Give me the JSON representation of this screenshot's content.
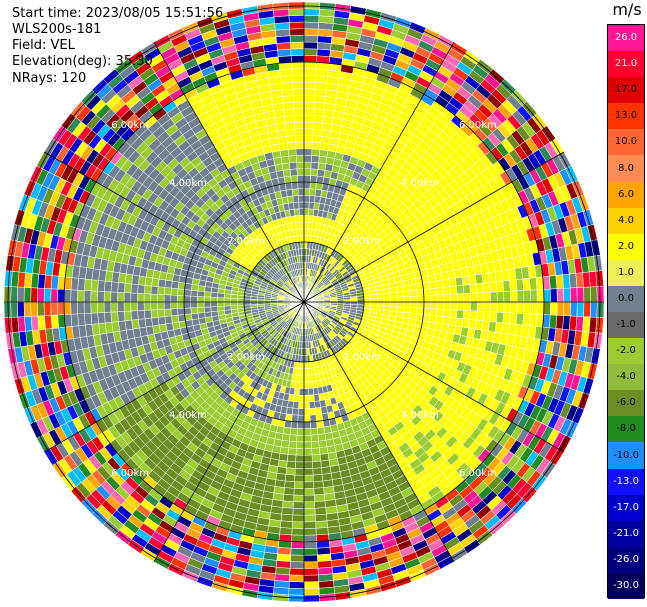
{
  "header": {
    "start_time": "Start time: 2023/08/05 15:51:56",
    "instrument": "WLS200s-181",
    "field": "Field: VEL",
    "elevation": "Elevation(deg): 35.30",
    "nrays": "NRays: 120"
  },
  "colorbar": {
    "unit": "m/s",
    "labels": [
      "26.0",
      "21.0",
      "17.0",
      "13.0",
      "10.0",
      "8.0",
      "6.0",
      "4.0",
      "2.0",
      "1.0",
      "0.0",
      "-1.0",
      "-2.0",
      "-4.0",
      "-6.0",
      "-8.0",
      "-10.0",
      "-13.0",
      "-17.0",
      "-21.0",
      "-26.0",
      "-30.0"
    ],
    "colors": [
      "#ff1493",
      "#ff0030",
      "#e00000",
      "#ff3300",
      "#ff6633",
      "#ff8c55",
      "#ffa500",
      "#ffd200",
      "#ffff00",
      "#eeee55",
      "#708090",
      "#696969",
      "#9acd32",
      "#8fbc3a",
      "#6b8e23",
      "#228b22",
      "#1e90ff",
      "#1010ff",
      "#0000cd",
      "#0000a0",
      "#000080",
      "#00005a"
    ]
  },
  "chart_data": {
    "type": "heatmap",
    "projection": "polar-ppi",
    "field": "VEL",
    "unit": "m/s",
    "elevation_deg": 35.3,
    "n_rays": 120,
    "range_ring_labels": [
      "2.00km",
      "4.00km",
      "6.00km"
    ],
    "ring_label_positions": [
      "N",
      "NE",
      "E",
      "SE",
      "S",
      "SW",
      "W",
      "NW"
    ],
    "colorbar_ticks": [
      26.0,
      21.0,
      17.0,
      13.0,
      10.0,
      8.0,
      6.0,
      4.0,
      2.0,
      1.0,
      0.0,
      -1.0,
      -2.0,
      -4.0,
      -6.0,
      -8.0,
      -10.0,
      -13.0,
      -17.0,
      -21.0,
      -26.0,
      -30.0
    ],
    "zones": [
      {
        "from_km": 0.0,
        "to_km": 1.0,
        "description": "mixed grey / green / yellow near-zero velocities"
      },
      {
        "from_km": 1.0,
        "to_km": 2.4,
        "description": "positive (yellow) in east, negative (green) in west, grey band"
      },
      {
        "from_km": 2.4,
        "to_km": 4.0,
        "description": "yellow north-east, green south, grey west, noisy edges"
      },
      {
        "from_km": 4.0,
        "to_km": 7.9,
        "description": "noise: random colours across full scale"
      }
    ]
  }
}
